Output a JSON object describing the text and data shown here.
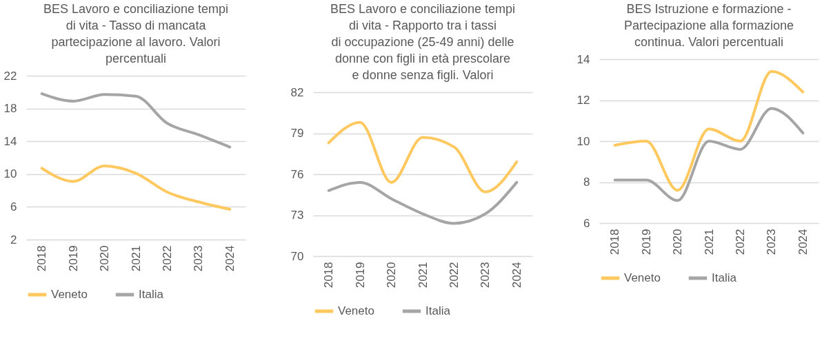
{
  "chart_data": [
    {
      "type": "line",
      "title": "BES Lavoro e conciliazione tempi di vita - Tasso di mancata partecipazione al lavoro. Valori percentuali",
      "categories": [
        "2018",
        "2019",
        "2020",
        "2021",
        "2022",
        "2023",
        "2024"
      ],
      "ylim": [
        2,
        22
      ],
      "yticks": [
        2,
        6,
        10,
        14,
        18,
        22
      ],
      "grid": "y",
      "legend": "bottom",
      "series": [
        {
          "name": "Veneto",
          "color": "#ffc960",
          "values": [
            10.7,
            9.1,
            11.0,
            10.1,
            7.8,
            6.6,
            5.7
          ]
        },
        {
          "name": "Italia",
          "color": "#a5a5a5",
          "values": [
            19.8,
            18.9,
            19.7,
            19.5,
            16.2,
            14.8,
            13.3
          ]
        }
      ]
    },
    {
      "type": "line",
      "title": "BES Lavoro e conciliazione tempi di vita -  Rapporto tra i tassi di occupazione (25-49 anni) delle donne con figli in età prescolare e donne senza figli. Valori",
      "categories": [
        "2018",
        "2019",
        "2020",
        "2021",
        "2022",
        "2023",
        "2024"
      ],
      "ylim": [
        70,
        82
      ],
      "yticks": [
        70,
        73,
        76,
        79,
        82
      ],
      "grid": "y",
      "legend": "bottom",
      "series": [
        {
          "name": "Veneto",
          "color": "#ffc960",
          "values": [
            78.3,
            79.8,
            75.4,
            78.7,
            78.0,
            74.7,
            76.9
          ]
        },
        {
          "name": "Italia",
          "color": "#a5a5a5",
          "values": [
            74.8,
            75.4,
            74.2,
            73.1,
            72.4,
            73.1,
            75.4
          ]
        }
      ]
    },
    {
      "type": "line",
      "title": "BES Istruzione e formazione - Partecipazione alla formazione continua. Valori percentuali",
      "categories": [
        "2018",
        "2019",
        "2020",
        "2021",
        "2022",
        "2023",
        "2024"
      ],
      "ylim": [
        6,
        14
      ],
      "yticks": [
        6,
        8,
        10,
        12,
        14
      ],
      "grid": "y",
      "legend": "bottom",
      "series": [
        {
          "name": "Veneto",
          "color": "#ffc960",
          "values": [
            9.8,
            10.0,
            7.6,
            10.6,
            10.0,
            13.4,
            12.4
          ]
        },
        {
          "name": "Italia",
          "color": "#a5a5a5",
          "values": [
            8.1,
            8.1,
            7.1,
            10.0,
            9.6,
            11.6,
            10.4
          ]
        }
      ]
    }
  ]
}
